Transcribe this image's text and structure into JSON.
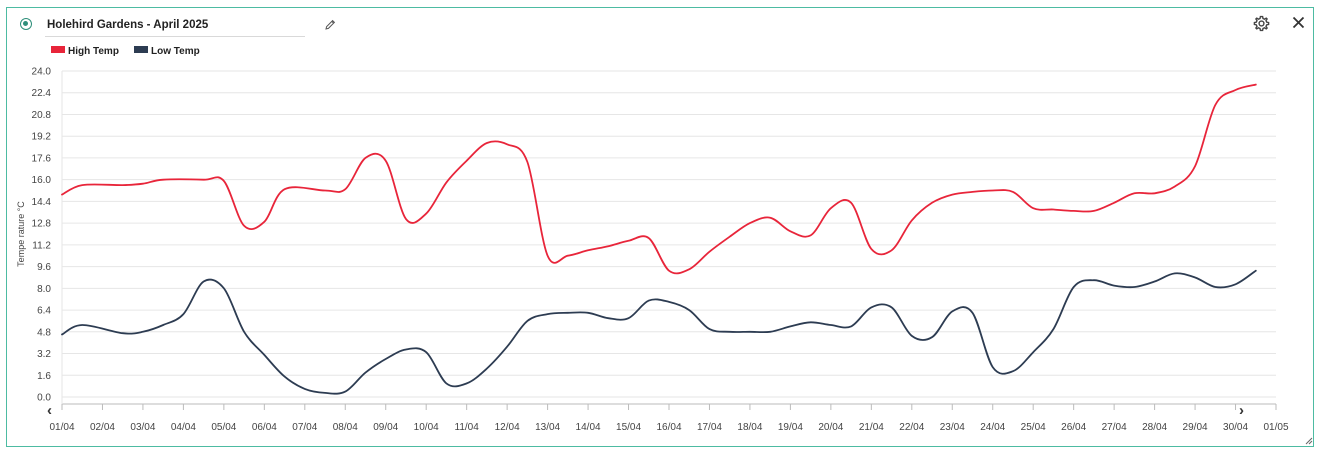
{
  "header": {
    "title": "Holehird Gardens - April 2025",
    "edit_icon": "pencil-icon",
    "settings_icon": "gear-icon",
    "close_icon": "close-icon"
  },
  "colors": {
    "accent": "#4dbba2",
    "high": "#e8253a",
    "low": "#2d3c52"
  },
  "chart_data": {
    "type": "line",
    "ylabel": "Tempe rature °C",
    "xlabel": "",
    "ylim": [
      0,
      24
    ],
    "yticks": [
      "24.0",
      "22.4",
      "20.8",
      "19.2",
      "17.6",
      "16.0",
      "14.4",
      "12.8",
      "11.2",
      "9.6",
      "8.0",
      "6.4",
      "4.8",
      "3.2",
      "1.6",
      "0.0"
    ],
    "categories": [
      "01/04",
      "02/04",
      "03/04",
      "04/04",
      "05/04",
      "06/04",
      "07/04",
      "08/04",
      "09/04",
      "10/04",
      "11/04",
      "12/04",
      "13/04",
      "14/04",
      "15/04",
      "16/04",
      "17/04",
      "18/04",
      "19/04",
      "20/04",
      "21/04",
      "22/04",
      "23/04",
      "24/04",
      "25/04",
      "26/04",
      "27/04",
      "28/04",
      "29/04",
      "30/04",
      "01/05"
    ],
    "grid": true,
    "legend": "top-left",
    "series": [
      {
        "name": "High Temp",
        "color": "#e8253a",
        "points": [
          [
            0,
            14.9
          ],
          [
            0.5,
            15.6
          ],
          [
            1.5,
            15.6
          ],
          [
            2.0,
            15.7
          ],
          [
            2.5,
            16.0
          ],
          [
            3.5,
            16.0
          ],
          [
            4.0,
            15.9
          ],
          [
            4.5,
            12.6
          ],
          [
            5.0,
            12.9
          ],
          [
            5.5,
            15.3
          ],
          [
            6.5,
            15.2
          ],
          [
            7.0,
            15.3
          ],
          [
            7.5,
            17.6
          ],
          [
            8.0,
            17.4
          ],
          [
            8.5,
            13.1
          ],
          [
            9.0,
            13.5
          ],
          [
            9.5,
            15.8
          ],
          [
            10.0,
            17.4
          ],
          [
            10.5,
            18.7
          ],
          [
            11.0,
            18.6
          ],
          [
            11.5,
            17.3
          ],
          [
            12.0,
            10.4
          ],
          [
            12.5,
            10.4
          ],
          [
            13.0,
            10.8
          ],
          [
            13.5,
            11.1
          ],
          [
            14.0,
            11.5
          ],
          [
            14.5,
            11.7
          ],
          [
            15.0,
            9.3
          ],
          [
            15.5,
            9.4
          ],
          [
            16.0,
            10.7
          ],
          [
            16.5,
            11.8
          ],
          [
            17.0,
            12.8
          ],
          [
            17.5,
            13.2
          ],
          [
            18.0,
            12.2
          ],
          [
            18.5,
            11.9
          ],
          [
            19.0,
            13.9
          ],
          [
            19.5,
            14.3
          ],
          [
            20.0,
            10.9
          ],
          [
            20.5,
            10.8
          ],
          [
            21.0,
            13.0
          ],
          [
            21.5,
            14.3
          ],
          [
            22.0,
            14.9
          ],
          [
            22.5,
            15.1
          ],
          [
            23.0,
            15.2
          ],
          [
            23.5,
            15.1
          ],
          [
            24.0,
            13.9
          ],
          [
            24.5,
            13.8
          ],
          [
            25.0,
            13.7
          ],
          [
            25.5,
            13.7
          ],
          [
            26.0,
            14.3
          ],
          [
            26.5,
            15.0
          ],
          [
            27.0,
            15.0
          ],
          [
            27.5,
            15.5
          ],
          [
            28.0,
            17.0
          ],
          [
            28.5,
            21.5
          ],
          [
            29.0,
            22.6
          ],
          [
            29.5,
            23.0
          ]
        ]
      },
      {
        "name": "Low Temp",
        "color": "#2d3c52",
        "points": [
          [
            0,
            4.6
          ],
          [
            0.5,
            5.3
          ],
          [
            1.5,
            4.7
          ],
          [
            2.0,
            4.8
          ],
          [
            2.5,
            5.3
          ],
          [
            3.0,
            6.1
          ],
          [
            3.5,
            8.5
          ],
          [
            4.0,
            8.0
          ],
          [
            4.5,
            4.8
          ],
          [
            5.0,
            3.1
          ],
          [
            5.5,
            1.5
          ],
          [
            6.0,
            0.6
          ],
          [
            6.5,
            0.3
          ],
          [
            7.0,
            0.4
          ],
          [
            7.5,
            1.8
          ],
          [
            8.0,
            2.8
          ],
          [
            8.5,
            3.5
          ],
          [
            9.0,
            3.3
          ],
          [
            9.5,
            1.0
          ],
          [
            10.0,
            1.0
          ],
          [
            10.5,
            2.1
          ],
          [
            11.0,
            3.7
          ],
          [
            11.5,
            5.6
          ],
          [
            12.0,
            6.1
          ],
          [
            12.5,
            6.2
          ],
          [
            13.0,
            6.2
          ],
          [
            13.5,
            5.8
          ],
          [
            14.0,
            5.8
          ],
          [
            14.5,
            7.1
          ],
          [
            15.0,
            7.0
          ],
          [
            15.5,
            6.4
          ],
          [
            16.0,
            5.0
          ],
          [
            16.5,
            4.8
          ],
          [
            17.0,
            4.8
          ],
          [
            17.5,
            4.8
          ],
          [
            18.0,
            5.2
          ],
          [
            18.5,
            5.5
          ],
          [
            19.0,
            5.3
          ],
          [
            19.5,
            5.2
          ],
          [
            20.0,
            6.6
          ],
          [
            20.5,
            6.6
          ],
          [
            21.0,
            4.5
          ],
          [
            21.5,
            4.4
          ],
          [
            22.0,
            6.3
          ],
          [
            22.5,
            6.2
          ],
          [
            23.0,
            2.2
          ],
          [
            23.5,
            1.9
          ],
          [
            24.0,
            3.3
          ],
          [
            24.5,
            5.0
          ],
          [
            25.0,
            8.1
          ],
          [
            25.5,
            8.6
          ],
          [
            26.0,
            8.2
          ],
          [
            26.5,
            8.1
          ],
          [
            27.0,
            8.5
          ],
          [
            27.5,
            9.1
          ],
          [
            28.0,
            8.8
          ],
          [
            28.5,
            8.1
          ],
          [
            29.0,
            8.3
          ],
          [
            29.5,
            9.3
          ]
        ]
      }
    ]
  }
}
